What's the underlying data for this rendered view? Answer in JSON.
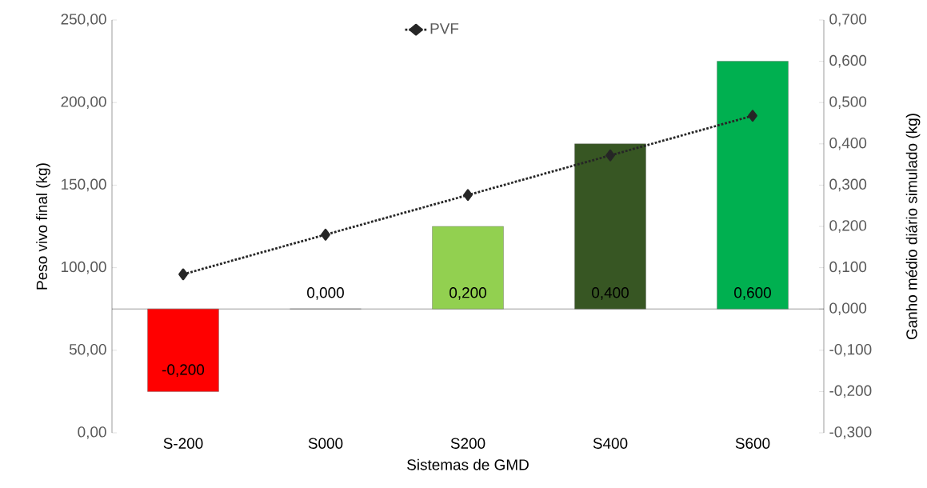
{
  "chart_data": {
    "type": "bar",
    "xlabel": "Sistemas de GMD",
    "ylabel": "Peso vivo final (kg)",
    "y2label": "Ganho médio diário simulado (kg)",
    "categories": [
      "S-200",
      "S000",
      "S200",
      "S400",
      "S600"
    ],
    "series": [
      {
        "axis": "y2",
        "values": [
          -0.2,
          0,
          0.2,
          0.4,
          0.6
        ],
        "colors": [
          "#ff0000",
          "#ffffff",
          "#92d050",
          "#375623",
          "#00b050"
        ],
        "value_labels": [
          "-0,200",
          "0,000",
          "0,200",
          "0,400",
          "0,600"
        ]
      },
      {
        "type": "line",
        "name": "PVF",
        "color": "#262626",
        "values": [
          96,
          120,
          144,
          168,
          192
        ]
      }
    ],
    "marker": "diamond",
    "line_style": "dotted",
    "legend": "top",
    "ylim": [
      0,
      250
    ],
    "yticks": [
      {
        "value": 0,
        "label": "0,00"
      },
      {
        "value": 50,
        "label": "50,00"
      },
      {
        "value": 100,
        "label": "100,00"
      },
      {
        "value": 150,
        "label": "150,00"
      },
      {
        "value": 200,
        "label": "200,00"
      },
      {
        "value": 250,
        "label": "250,00"
      }
    ],
    "y2lim": [
      -0.3,
      0.7
    ],
    "y2ticks": [
      {
        "value": -0.3,
        "label": "-0,300"
      },
      {
        "value": -0.2,
        "label": "-0,200"
      },
      {
        "value": -0.1,
        "label": "-0,100"
      },
      {
        "value": 0,
        "label": "0,000"
      },
      {
        "value": 0.1,
        "label": "0,100"
      },
      {
        "value": 0.2,
        "label": "0,200"
      },
      {
        "value": 0.3,
        "label": "0,300"
      },
      {
        "value": 0.4,
        "label": "0,400"
      },
      {
        "value": 0.5,
        "label": "0,500"
      },
      {
        "value": 0.6,
        "label": "0,600"
      },
      {
        "value": 0.7,
        "label": "0,700"
      }
    ]
  }
}
